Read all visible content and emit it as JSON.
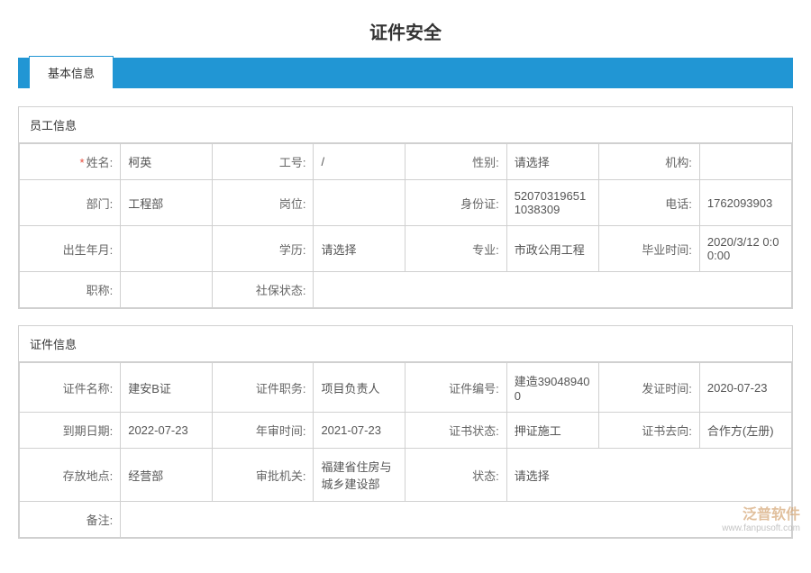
{
  "page_title": "证件安全",
  "tab_label": "基本信息",
  "employee_section": {
    "header": "员工信息",
    "rows": [
      {
        "c1_label": "姓名:",
        "c1_value": "柯英",
        "c1_required": true,
        "c2_label": "工号:",
        "c2_value": "/",
        "c3_label": "性别:",
        "c3_value": "请选择",
        "c4_label": "机构:",
        "c4_value": ""
      },
      {
        "c1_label": "部门:",
        "c1_value": "工程部",
        "c2_label": "岗位:",
        "c2_value": "",
        "c3_label": "身份证:",
        "c3_value": "520703196511038309",
        "c4_label": "电话:",
        "c4_value": "1762093903"
      },
      {
        "c1_label": "出生年月:",
        "c1_value": "",
        "c2_label": "学历:",
        "c2_value": "请选择",
        "c3_label": "专业:",
        "c3_value": "市政公用工程",
        "c4_label": "毕业时间:",
        "c4_value": "2020/3/12 0:00:00"
      },
      {
        "c1_label": "职称:",
        "c1_value": "",
        "c2_label": "社保状态:",
        "c2_value": "",
        "c3_label": "",
        "c3_value": "",
        "c4_label": "",
        "c4_value": ""
      }
    ]
  },
  "cert_section": {
    "header": "证件信息",
    "rows": [
      {
        "c1_label": "证件名称:",
        "c1_value": "建安B证",
        "c2_label": "证件职务:",
        "c2_value": "项目负责人",
        "c3_label": "证件编号:",
        "c3_value": "建造390489400",
        "c4_label": "发证时间:",
        "c4_value": "2020-07-23"
      },
      {
        "c1_label": "到期日期:",
        "c1_value": "2022-07-23",
        "c2_label": "年审时间:",
        "c2_value": "2021-07-23",
        "c3_label": "证书状态:",
        "c3_value": "押证施工",
        "c4_label": "证书去向:",
        "c4_value": "合作方(左册)"
      },
      {
        "c1_label": "存放地点:",
        "c1_value": "经营部",
        "c2_label": "审批机关:",
        "c2_value": "福建省住房与城乡建设部",
        "c3_label": "状态:",
        "c3_value": "请选择",
        "c4_label": "",
        "c4_value": ""
      }
    ],
    "remark_label": "备注:",
    "remark_value": ""
  },
  "watermark": {
    "brand": "泛普软件",
    "url": "www.fanpusoft.com"
  }
}
